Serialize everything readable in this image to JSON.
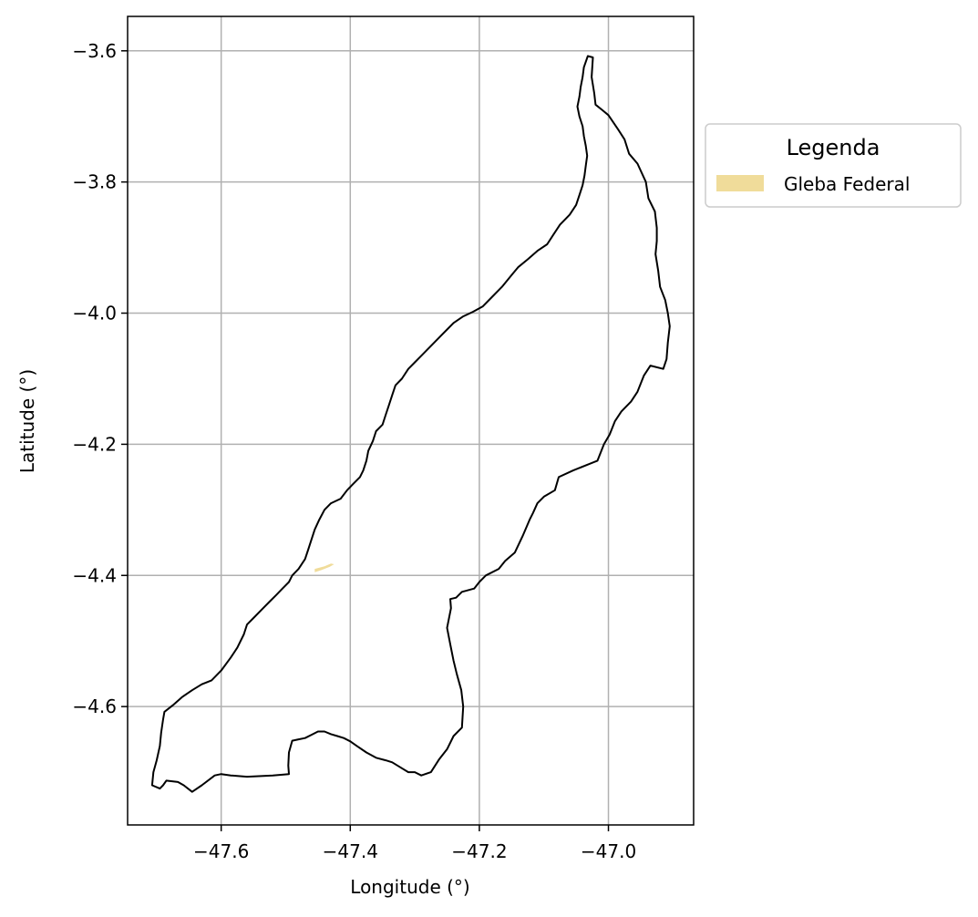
{
  "chart_data": {
    "type": "map",
    "xlabel": "Longitude (°)",
    "ylabel": "Latitude (°)",
    "xlim": [
      -47.745,
      -46.868
    ],
    "ylim": [
      -4.7805,
      -3.5475
    ],
    "x_ticks": [
      -47.6,
      -47.4,
      -47.2,
      -47.0
    ],
    "x_tick_labels": [
      "−47.6",
      "−47.4",
      "−47.2",
      "−47.0"
    ],
    "y_ticks": [
      -3.6,
      -3.8,
      -4.0,
      -4.2,
      -4.4,
      -4.6
    ],
    "y_tick_labels": [
      "−3.6",
      "−3.8",
      "−4.0",
      "−4.2",
      "−4.4",
      "−4.6"
    ],
    "grid": true,
    "legend": {
      "title": "Legenda",
      "placement": "outside-upper-right",
      "entries": [
        {
          "label": "Gleba Federal",
          "color": "#f0dc9a"
        }
      ]
    },
    "boundary": {
      "stroke": "#000000",
      "coordinates": [
        [
          -47.032,
          -3.608
        ],
        [
          -47.024,
          -3.61
        ],
        [
          -47.026,
          -3.64
        ],
        [
          -47.022,
          -3.665
        ],
        [
          -47.02,
          -3.682
        ],
        [
          -47.01,
          -3.69
        ],
        [
          -47.0,
          -3.698
        ],
        [
          -46.985,
          -3.72
        ],
        [
          -46.975,
          -3.735
        ],
        [
          -46.968,
          -3.757
        ],
        [
          -46.955,
          -3.772
        ],
        [
          -46.942,
          -3.8
        ],
        [
          -46.938,
          -3.825
        ],
        [
          -46.928,
          -3.845
        ],
        [
          -46.925,
          -3.87
        ],
        [
          -46.925,
          -3.89
        ],
        [
          -46.927,
          -3.91
        ],
        [
          -46.923,
          -3.935
        ],
        [
          -46.92,
          -3.96
        ],
        [
          -46.912,
          -3.98
        ],
        [
          -46.908,
          -4.0
        ],
        [
          -46.905,
          -4.02
        ],
        [
          -46.908,
          -4.045
        ],
        [
          -46.91,
          -4.07
        ],
        [
          -46.915,
          -4.085
        ],
        [
          -46.935,
          -4.08
        ],
        [
          -46.945,
          -4.095
        ],
        [
          -46.955,
          -4.12
        ],
        [
          -46.965,
          -4.135
        ],
        [
          -46.98,
          -4.15
        ],
        [
          -46.99,
          -4.165
        ],
        [
          -46.998,
          -4.185
        ],
        [
          -47.007,
          -4.2
        ],
        [
          -47.017,
          -4.225
        ],
        [
          -47.055,
          -4.24
        ],
        [
          -47.077,
          -4.25
        ],
        [
          -47.083,
          -4.27
        ],
        [
          -47.1,
          -4.28
        ],
        [
          -47.11,
          -4.29
        ],
        [
          -47.117,
          -4.305
        ],
        [
          -47.122,
          -4.315
        ],
        [
          -47.133,
          -4.34
        ],
        [
          -47.145,
          -4.365
        ],
        [
          -47.16,
          -4.378
        ],
        [
          -47.17,
          -4.39
        ],
        [
          -47.19,
          -4.4
        ],
        [
          -47.2,
          -4.41
        ],
        [
          -47.208,
          -4.42
        ],
        [
          -47.227,
          -4.425
        ],
        [
          -47.236,
          -4.434
        ],
        [
          -47.245,
          -4.436
        ],
        [
          -47.244,
          -4.45
        ],
        [
          -47.25,
          -4.48
        ],
        [
          -47.245,
          -4.505
        ],
        [
          -47.24,
          -4.53
        ],
        [
          -47.235,
          -4.55
        ],
        [
          -47.228,
          -4.575
        ],
        [
          -47.225,
          -4.6
        ],
        [
          -47.227,
          -4.632
        ],
        [
          -47.24,
          -4.645
        ],
        [
          -47.25,
          -4.665
        ],
        [
          -47.262,
          -4.68
        ],
        [
          -47.275,
          -4.7
        ],
        [
          -47.29,
          -4.705
        ],
        [
          -47.3,
          -4.7
        ],
        [
          -47.31,
          -4.7
        ],
        [
          -47.32,
          -4.694
        ],
        [
          -47.335,
          -4.685
        ],
        [
          -47.345,
          -4.682
        ],
        [
          -47.36,
          -4.678
        ],
        [
          -47.375,
          -4.67
        ],
        [
          -47.39,
          -4.66
        ],
        [
          -47.4,
          -4.653
        ],
        [
          -47.41,
          -4.648
        ],
        [
          -47.42,
          -4.645
        ],
        [
          -47.43,
          -4.642
        ],
        [
          -47.44,
          -4.638
        ],
        [
          -47.45,
          -4.638
        ],
        [
          -47.46,
          -4.643
        ],
        [
          -47.47,
          -4.648
        ],
        [
          -47.48,
          -4.65
        ],
        [
          -47.49,
          -4.652
        ],
        [
          -47.495,
          -4.67
        ],
        [
          -47.496,
          -4.69
        ],
        [
          -47.495,
          -4.703
        ],
        [
          -47.52,
          -4.705
        ],
        [
          -47.56,
          -4.707
        ],
        [
          -47.585,
          -4.705
        ],
        [
          -47.6,
          -4.703
        ],
        [
          -47.61,
          -4.705
        ],
        [
          -47.63,
          -4.72
        ],
        [
          -47.645,
          -4.73
        ],
        [
          -47.658,
          -4.72
        ],
        [
          -47.667,
          -4.715
        ],
        [
          -47.685,
          -4.713
        ],
        [
          -47.69,
          -4.72
        ],
        [
          -47.695,
          -4.725
        ],
        [
          -47.707,
          -4.72
        ],
        [
          -47.705,
          -4.7
        ],
        [
          -47.7,
          -4.682
        ],
        [
          -47.695,
          -4.66
        ],
        [
          -47.693,
          -4.64
        ],
        [
          -47.69,
          -4.62
        ],
        [
          -47.688,
          -4.608
        ],
        [
          -47.675,
          -4.598
        ],
        [
          -47.66,
          -4.585
        ],
        [
          -47.645,
          -4.575
        ],
        [
          -47.63,
          -4.566
        ],
        [
          -47.615,
          -4.56
        ],
        [
          -47.6,
          -4.545
        ],
        [
          -47.585,
          -4.525
        ],
        [
          -47.575,
          -4.51
        ],
        [
          -47.565,
          -4.49
        ],
        [
          -47.56,
          -4.475
        ],
        [
          -47.55,
          -4.465
        ],
        [
          -47.535,
          -4.45
        ],
        [
          -47.525,
          -4.44
        ],
        [
          -47.515,
          -4.43
        ],
        [
          -47.505,
          -4.42
        ],
        [
          -47.495,
          -4.41
        ],
        [
          -47.49,
          -4.4
        ],
        [
          -47.48,
          -4.39
        ],
        [
          -47.47,
          -4.375
        ],
        [
          -47.465,
          -4.36
        ],
        [
          -47.46,
          -4.345
        ],
        [
          -47.455,
          -4.33
        ],
        [
          -47.448,
          -4.315
        ],
        [
          -47.44,
          -4.3
        ],
        [
          -47.43,
          -4.29
        ],
        [
          -47.415,
          -4.283
        ],
        [
          -47.405,
          -4.27
        ],
        [
          -47.395,
          -4.26
        ],
        [
          -47.385,
          -4.25
        ],
        [
          -47.38,
          -4.24
        ],
        [
          -47.375,
          -4.225
        ],
        [
          -47.372,
          -4.21
        ],
        [
          -47.365,
          -4.195
        ],
        [
          -47.36,
          -4.18
        ],
        [
          -47.35,
          -4.17
        ],
        [
          -47.345,
          -4.155
        ],
        [
          -47.34,
          -4.14
        ],
        [
          -47.335,
          -4.125
        ],
        [
          -47.33,
          -4.11
        ],
        [
          -47.32,
          -4.1
        ],
        [
          -47.31,
          -4.085
        ],
        [
          -47.3,
          -4.075
        ],
        [
          -47.29,
          -4.065
        ],
        [
          -47.28,
          -4.055
        ],
        [
          -47.27,
          -4.045
        ],
        [
          -47.26,
          -4.035
        ],
        [
          -47.25,
          -4.025
        ],
        [
          -47.24,
          -4.015
        ],
        [
          -47.225,
          -4.005
        ],
        [
          -47.21,
          -3.998
        ],
        [
          -47.195,
          -3.99
        ],
        [
          -47.18,
          -3.975
        ],
        [
          -47.165,
          -3.96
        ],
        [
          -47.15,
          -3.942
        ],
        [
          -47.14,
          -3.93
        ],
        [
          -47.125,
          -3.918
        ],
        [
          -47.11,
          -3.905
        ],
        [
          -47.095,
          -3.895
        ],
        [
          -47.085,
          -3.88
        ],
        [
          -47.075,
          -3.865
        ],
        [
          -47.06,
          -3.85
        ],
        [
          -47.05,
          -3.835
        ],
        [
          -47.045,
          -3.82
        ],
        [
          -47.04,
          -3.805
        ],
        [
          -47.037,
          -3.79
        ],
        [
          -47.035,
          -3.775
        ],
        [
          -47.033,
          -3.76
        ],
        [
          -47.035,
          -3.745
        ],
        [
          -47.038,
          -3.73
        ],
        [
          -47.04,
          -3.715
        ],
        [
          -47.045,
          -3.7
        ],
        [
          -47.048,
          -3.685
        ],
        [
          -47.045,
          -3.67
        ],
        [
          -47.043,
          -3.655
        ],
        [
          -47.04,
          -3.64
        ],
        [
          -47.038,
          -3.625
        ],
        [
          -47.032,
          -3.608
        ]
      ]
    },
    "gleba_federal": {
      "color": "#f0dc9a",
      "coordinates": [
        [
          -47.455,
          -4.39
        ],
        [
          -47.44,
          -4.386
        ],
        [
          -47.43,
          -4.382
        ],
        [
          -47.425,
          -4.383
        ],
        [
          -47.432,
          -4.387
        ],
        [
          -47.445,
          -4.392
        ],
        [
          -47.455,
          -4.395
        ]
      ]
    }
  }
}
